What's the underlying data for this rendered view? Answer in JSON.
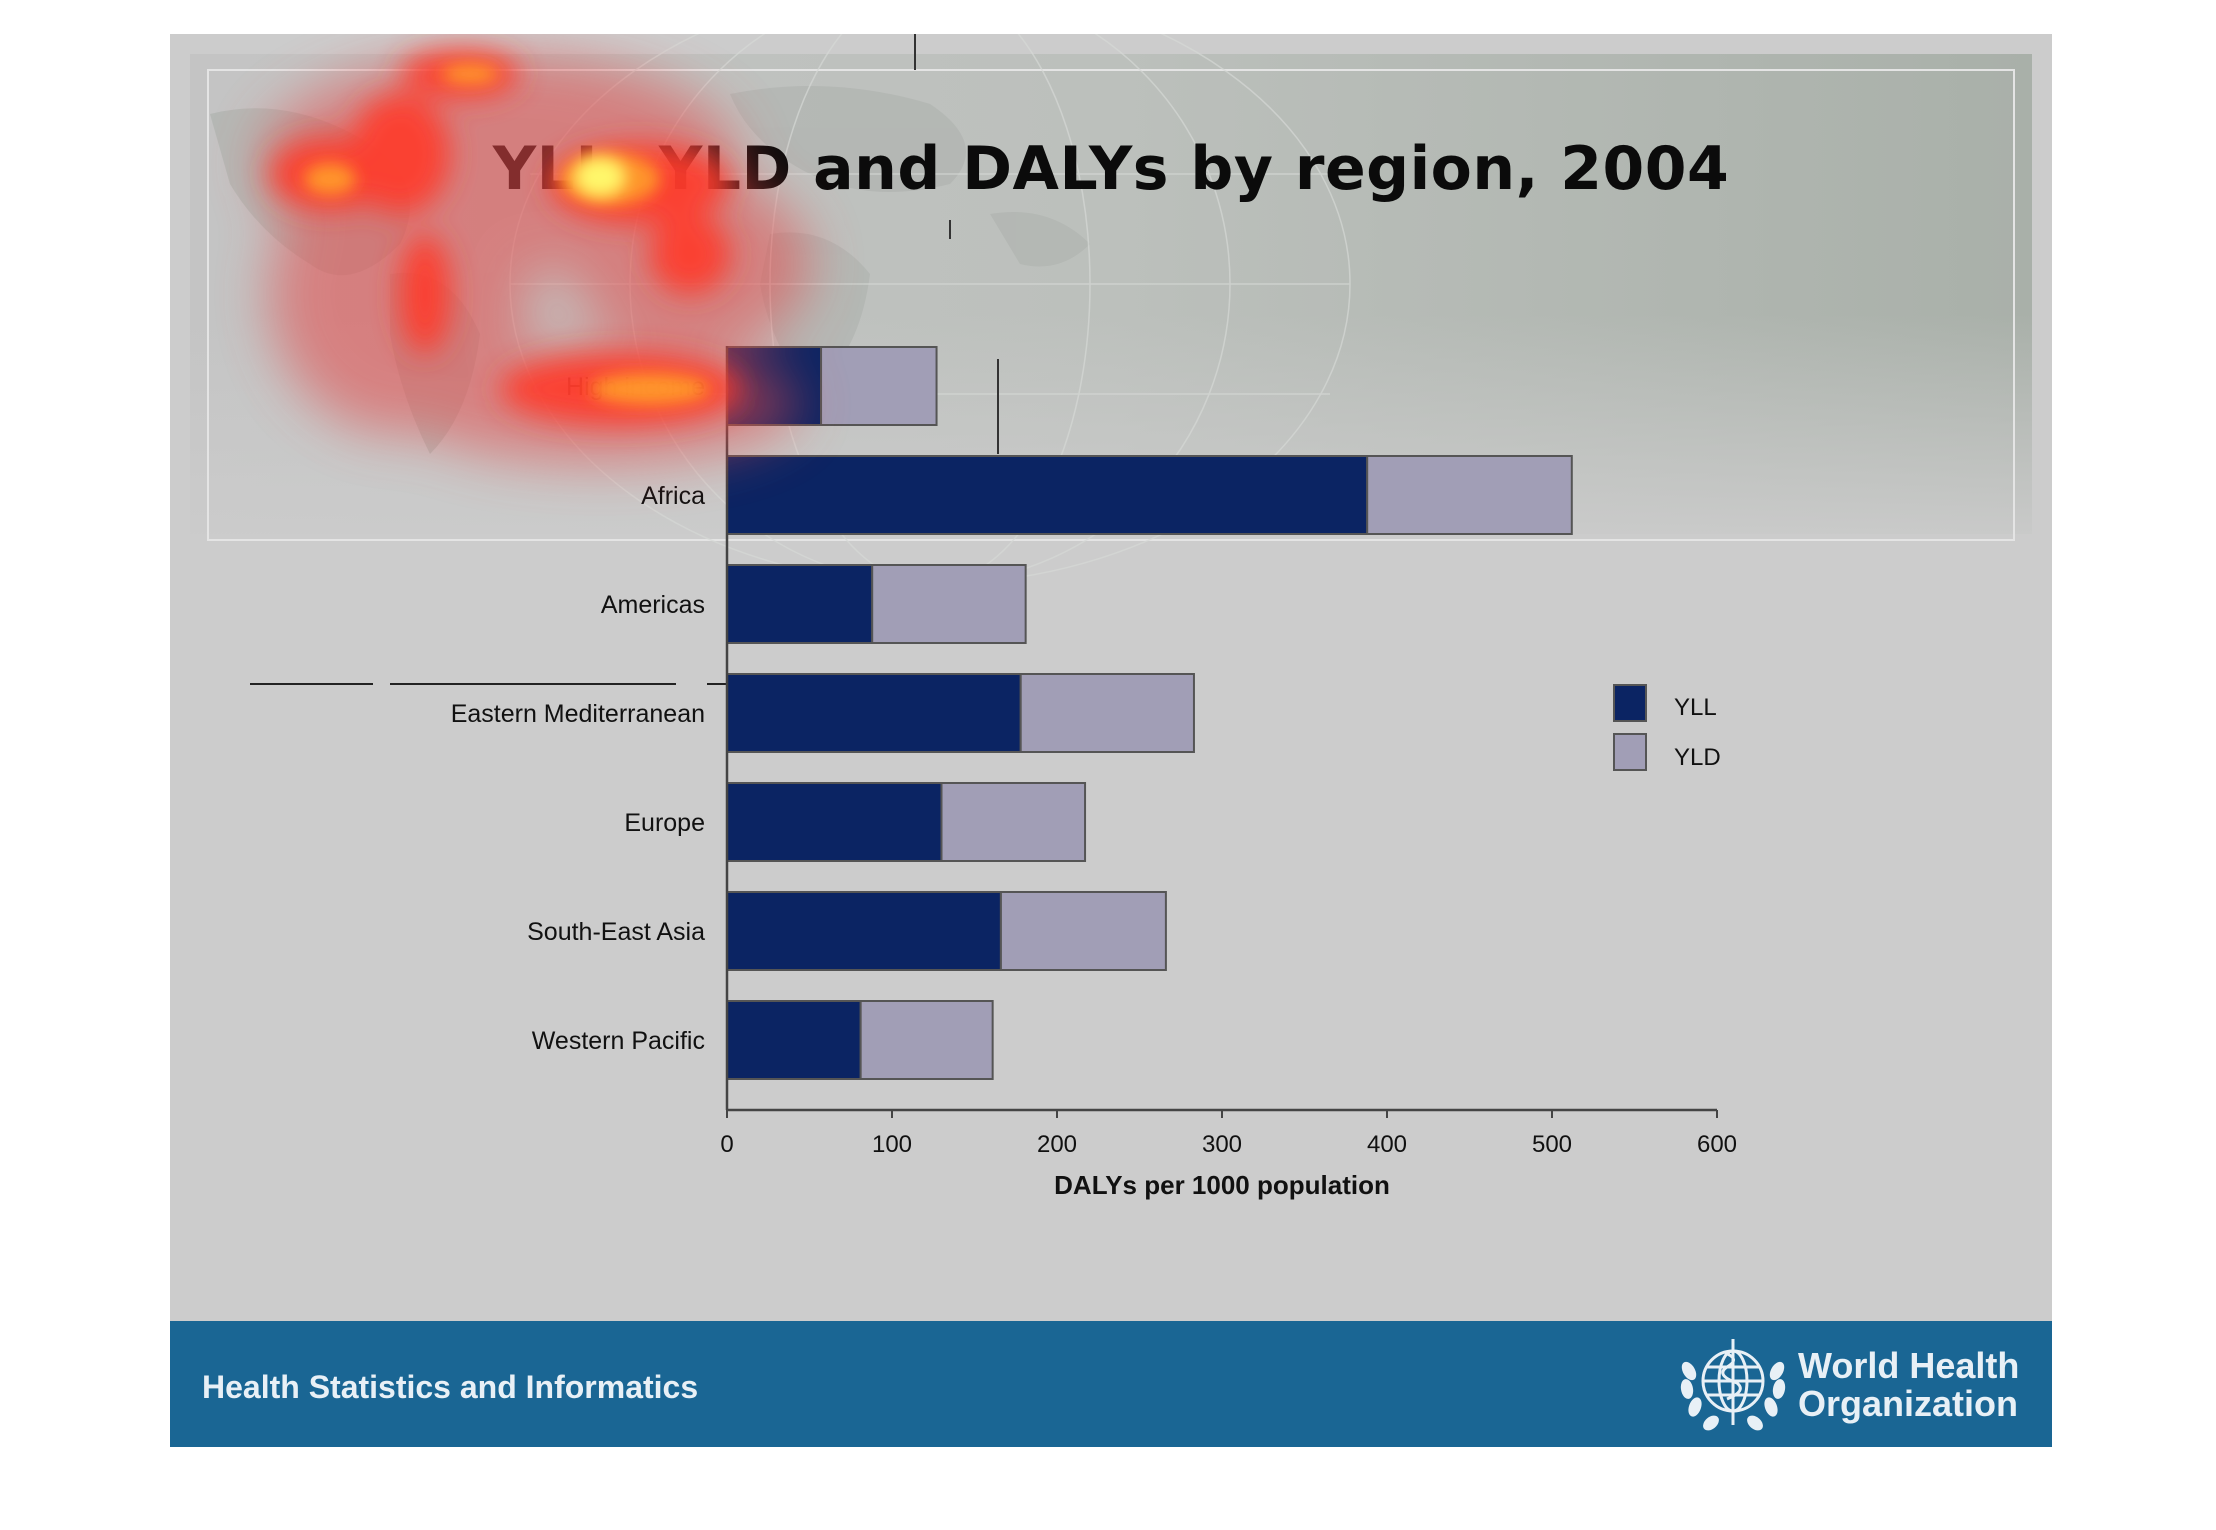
{
  "slide": {
    "title": "YLL, YLD and DALYs by region, 2004"
  },
  "footer": {
    "text": "Health Statistics and Informatics",
    "org_name_line1": "World Health",
    "org_name_line2": "Organization"
  },
  "colors": {
    "yll": "#0b2463",
    "yld": "#a19eb6",
    "footer_band": "#1a6694",
    "slide_bg": "#cccccc"
  },
  "chart_data": {
    "type": "bar",
    "orientation": "horizontal",
    "stacked": true,
    "categories": [
      "High income",
      "Africa",
      "Americas",
      "Eastern Mediterranean",
      "Europe",
      "South-East Asia",
      "Western Pacific"
    ],
    "series": [
      {
        "name": "YLL",
        "values": [
          57,
          388,
          88,
          178,
          130,
          166,
          81
        ]
      },
      {
        "name": "YLD",
        "values": [
          70,
          124,
          93,
          105,
          87,
          100,
          80
        ]
      }
    ],
    "xlabel": "DALYs per 1000 population",
    "xlim": [
      0,
      600
    ],
    "xticks": [
      0,
      100,
      200,
      300,
      400,
      500,
      600
    ],
    "grid": false,
    "legend_position": "right"
  }
}
